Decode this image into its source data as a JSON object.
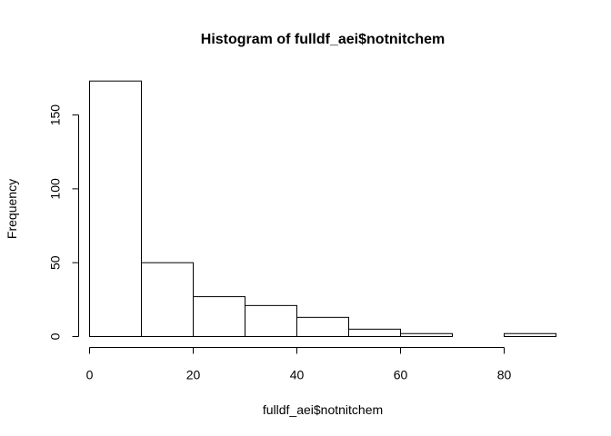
{
  "chart_data": {
    "type": "bar",
    "title": "Histogram of fulldf_aei$notnitchem",
    "xlabel": "fulldf_aei$notnitchem",
    "ylabel": "Frequency",
    "bins": [
      {
        "from": 0,
        "to": 10,
        "count": 173
      },
      {
        "from": 10,
        "to": 20,
        "count": 50
      },
      {
        "from": 20,
        "to": 30,
        "count": 27
      },
      {
        "from": 30,
        "to": 40,
        "count": 21
      },
      {
        "from": 40,
        "to": 50,
        "count": 13
      },
      {
        "from": 50,
        "to": 60,
        "count": 5
      },
      {
        "from": 60,
        "to": 70,
        "count": 2
      },
      {
        "from": 70,
        "to": 80,
        "count": 0
      },
      {
        "from": 80,
        "to": 90,
        "count": 2
      }
    ],
    "xticks": [
      0,
      20,
      40,
      60,
      80
    ],
    "yticks": [
      0,
      50,
      100,
      150
    ],
    "xlim": [
      0,
      90
    ],
    "ylim": [
      0,
      173
    ],
    "grid": false
  }
}
